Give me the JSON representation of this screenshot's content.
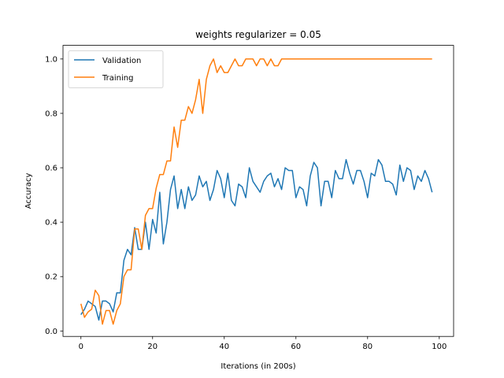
{
  "chart_data": {
    "type": "line",
    "title": "weights regularizer = 0.05",
    "xlabel": "Iterations (in 200s)",
    "ylabel": "Accuracy",
    "xlim": [
      -5,
      104
    ],
    "ylim": [
      -0.02,
      1.05
    ],
    "xticks": [
      0,
      20,
      40,
      60,
      80,
      100
    ],
    "yticks": [
      0.0,
      0.2,
      0.4,
      0.6,
      0.8,
      1.0
    ],
    "ytick_labels": [
      "0.0",
      "0.2",
      "0.4",
      "0.6",
      "0.8",
      "1.0"
    ],
    "xtick_labels": [
      "0",
      "20",
      "40",
      "60",
      "80",
      "100"
    ],
    "legend_position": "top-left",
    "grid": false,
    "series": [
      {
        "name": "Validation",
        "color": "#1f77b4",
        "values": [
          0.06,
          0.08,
          0.11,
          0.1,
          0.09,
          0.04,
          0.11,
          0.11,
          0.1,
          0.07,
          0.14,
          0.14,
          0.26,
          0.3,
          0.28,
          0.38,
          0.3,
          0.3,
          0.4,
          0.3,
          0.41,
          0.36,
          0.51,
          0.32,
          0.4,
          0.52,
          0.57,
          0.45,
          0.52,
          0.45,
          0.53,
          0.48,
          0.5,
          0.57,
          0.53,
          0.55,
          0.48,
          0.52,
          0.59,
          0.56,
          0.49,
          0.58,
          0.48,
          0.46,
          0.54,
          0.53,
          0.49,
          0.6,
          0.55,
          0.53,
          0.51,
          0.55,
          0.57,
          0.58,
          0.53,
          0.56,
          0.52,
          0.6,
          0.59,
          0.59,
          0.49,
          0.53,
          0.52,
          0.46,
          0.57,
          0.62,
          0.6,
          0.46,
          0.55,
          0.55,
          0.49,
          0.59,
          0.56,
          0.56,
          0.63,
          0.58,
          0.54,
          0.59,
          0.59,
          0.55,
          0.49,
          0.58,
          0.57,
          0.63,
          0.61,
          0.55,
          0.55,
          0.54,
          0.5,
          0.61,
          0.55,
          0.6,
          0.59,
          0.52,
          0.57,
          0.55,
          0.59,
          0.56,
          0.51
        ]
      },
      {
        "name": "Training",
        "color": "#ff7f0e",
        "values": [
          0.1,
          0.05,
          0.07,
          0.08,
          0.15,
          0.13,
          0.025,
          0.075,
          0.075,
          0.025,
          0.075,
          0.1,
          0.2,
          0.225,
          0.225,
          0.375,
          0.375,
          0.3,
          0.425,
          0.45,
          0.45,
          0.525,
          0.575,
          0.575,
          0.625,
          0.625,
          0.75,
          0.675,
          0.775,
          0.775,
          0.825,
          0.8,
          0.85,
          0.925,
          0.8,
          0.925,
          0.975,
          1.0,
          0.95,
          0.975,
          0.95,
          0.95,
          0.975,
          1.0,
          0.975,
          0.975,
          1.0,
          1.0,
          1.0,
          0.975,
          1.0,
          1.0,
          0.975,
          1.0,
          0.975,
          0.975,
          1.0,
          1.0,
          1.0,
          1.0,
          1.0,
          1.0,
          1.0,
          1.0,
          1.0,
          1.0,
          1.0,
          1.0,
          1.0,
          1.0,
          1.0,
          1.0,
          1.0,
          1.0,
          1.0,
          1.0,
          1.0,
          1.0,
          1.0,
          1.0,
          1.0,
          1.0,
          1.0,
          1.0,
          1.0,
          1.0,
          1.0,
          1.0,
          1.0,
          1.0,
          1.0,
          1.0,
          1.0,
          1.0,
          1.0,
          1.0,
          1.0,
          1.0,
          1.0
        ]
      }
    ]
  }
}
